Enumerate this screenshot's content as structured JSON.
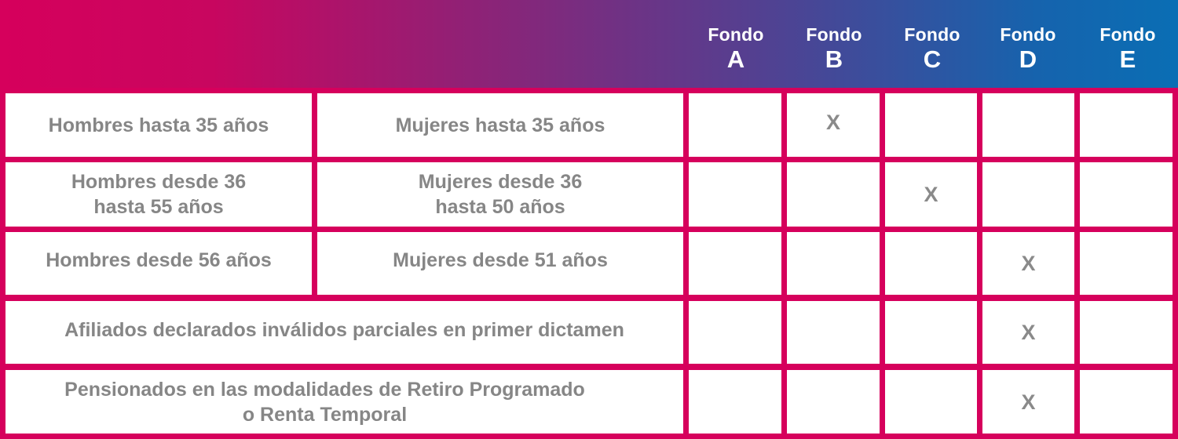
{
  "header": {
    "funds": [
      {
        "word": "Fondo",
        "letter": "A"
      },
      {
        "word": "Fondo",
        "letter": "B"
      },
      {
        "word": "Fondo",
        "letter": "C"
      },
      {
        "word": "Fondo",
        "letter": "D"
      },
      {
        "word": "Fondo",
        "letter": "E"
      }
    ]
  },
  "rows": [
    {
      "men": "Hombres hasta 35 años",
      "women": "Mujeres hasta 35 años",
      "marks": [
        "",
        "X",
        "",
        "",
        ""
      ]
    },
    {
      "men": "Hombres desde 36\nhasta 55 años",
      "women": "Mujeres desde 36\nhasta 50 años",
      "marks": [
        "",
        "",
        "X",
        "",
        ""
      ]
    },
    {
      "men": "Hombres desde 56 años",
      "women": "Mujeres desde 51 años",
      "marks": [
        "",
        "",
        "",
        "X",
        ""
      ]
    },
    {
      "label": "Afiliados declarados inválidos parciales en primer dictamen",
      "marks": [
        "",
        "",
        "",
        "X",
        ""
      ]
    },
    {
      "label": "Pensionados en las modalidades de Retiro Programado\no Renta Temporal",
      "marks": [
        "",
        "",
        "",
        "X",
        ""
      ]
    }
  ],
  "colors": {
    "border": "#d6005c",
    "gradient_start": "#d6005c",
    "gradient_end": "#0a6eb4",
    "text": "#868686",
    "header_text": "#ffffff"
  }
}
